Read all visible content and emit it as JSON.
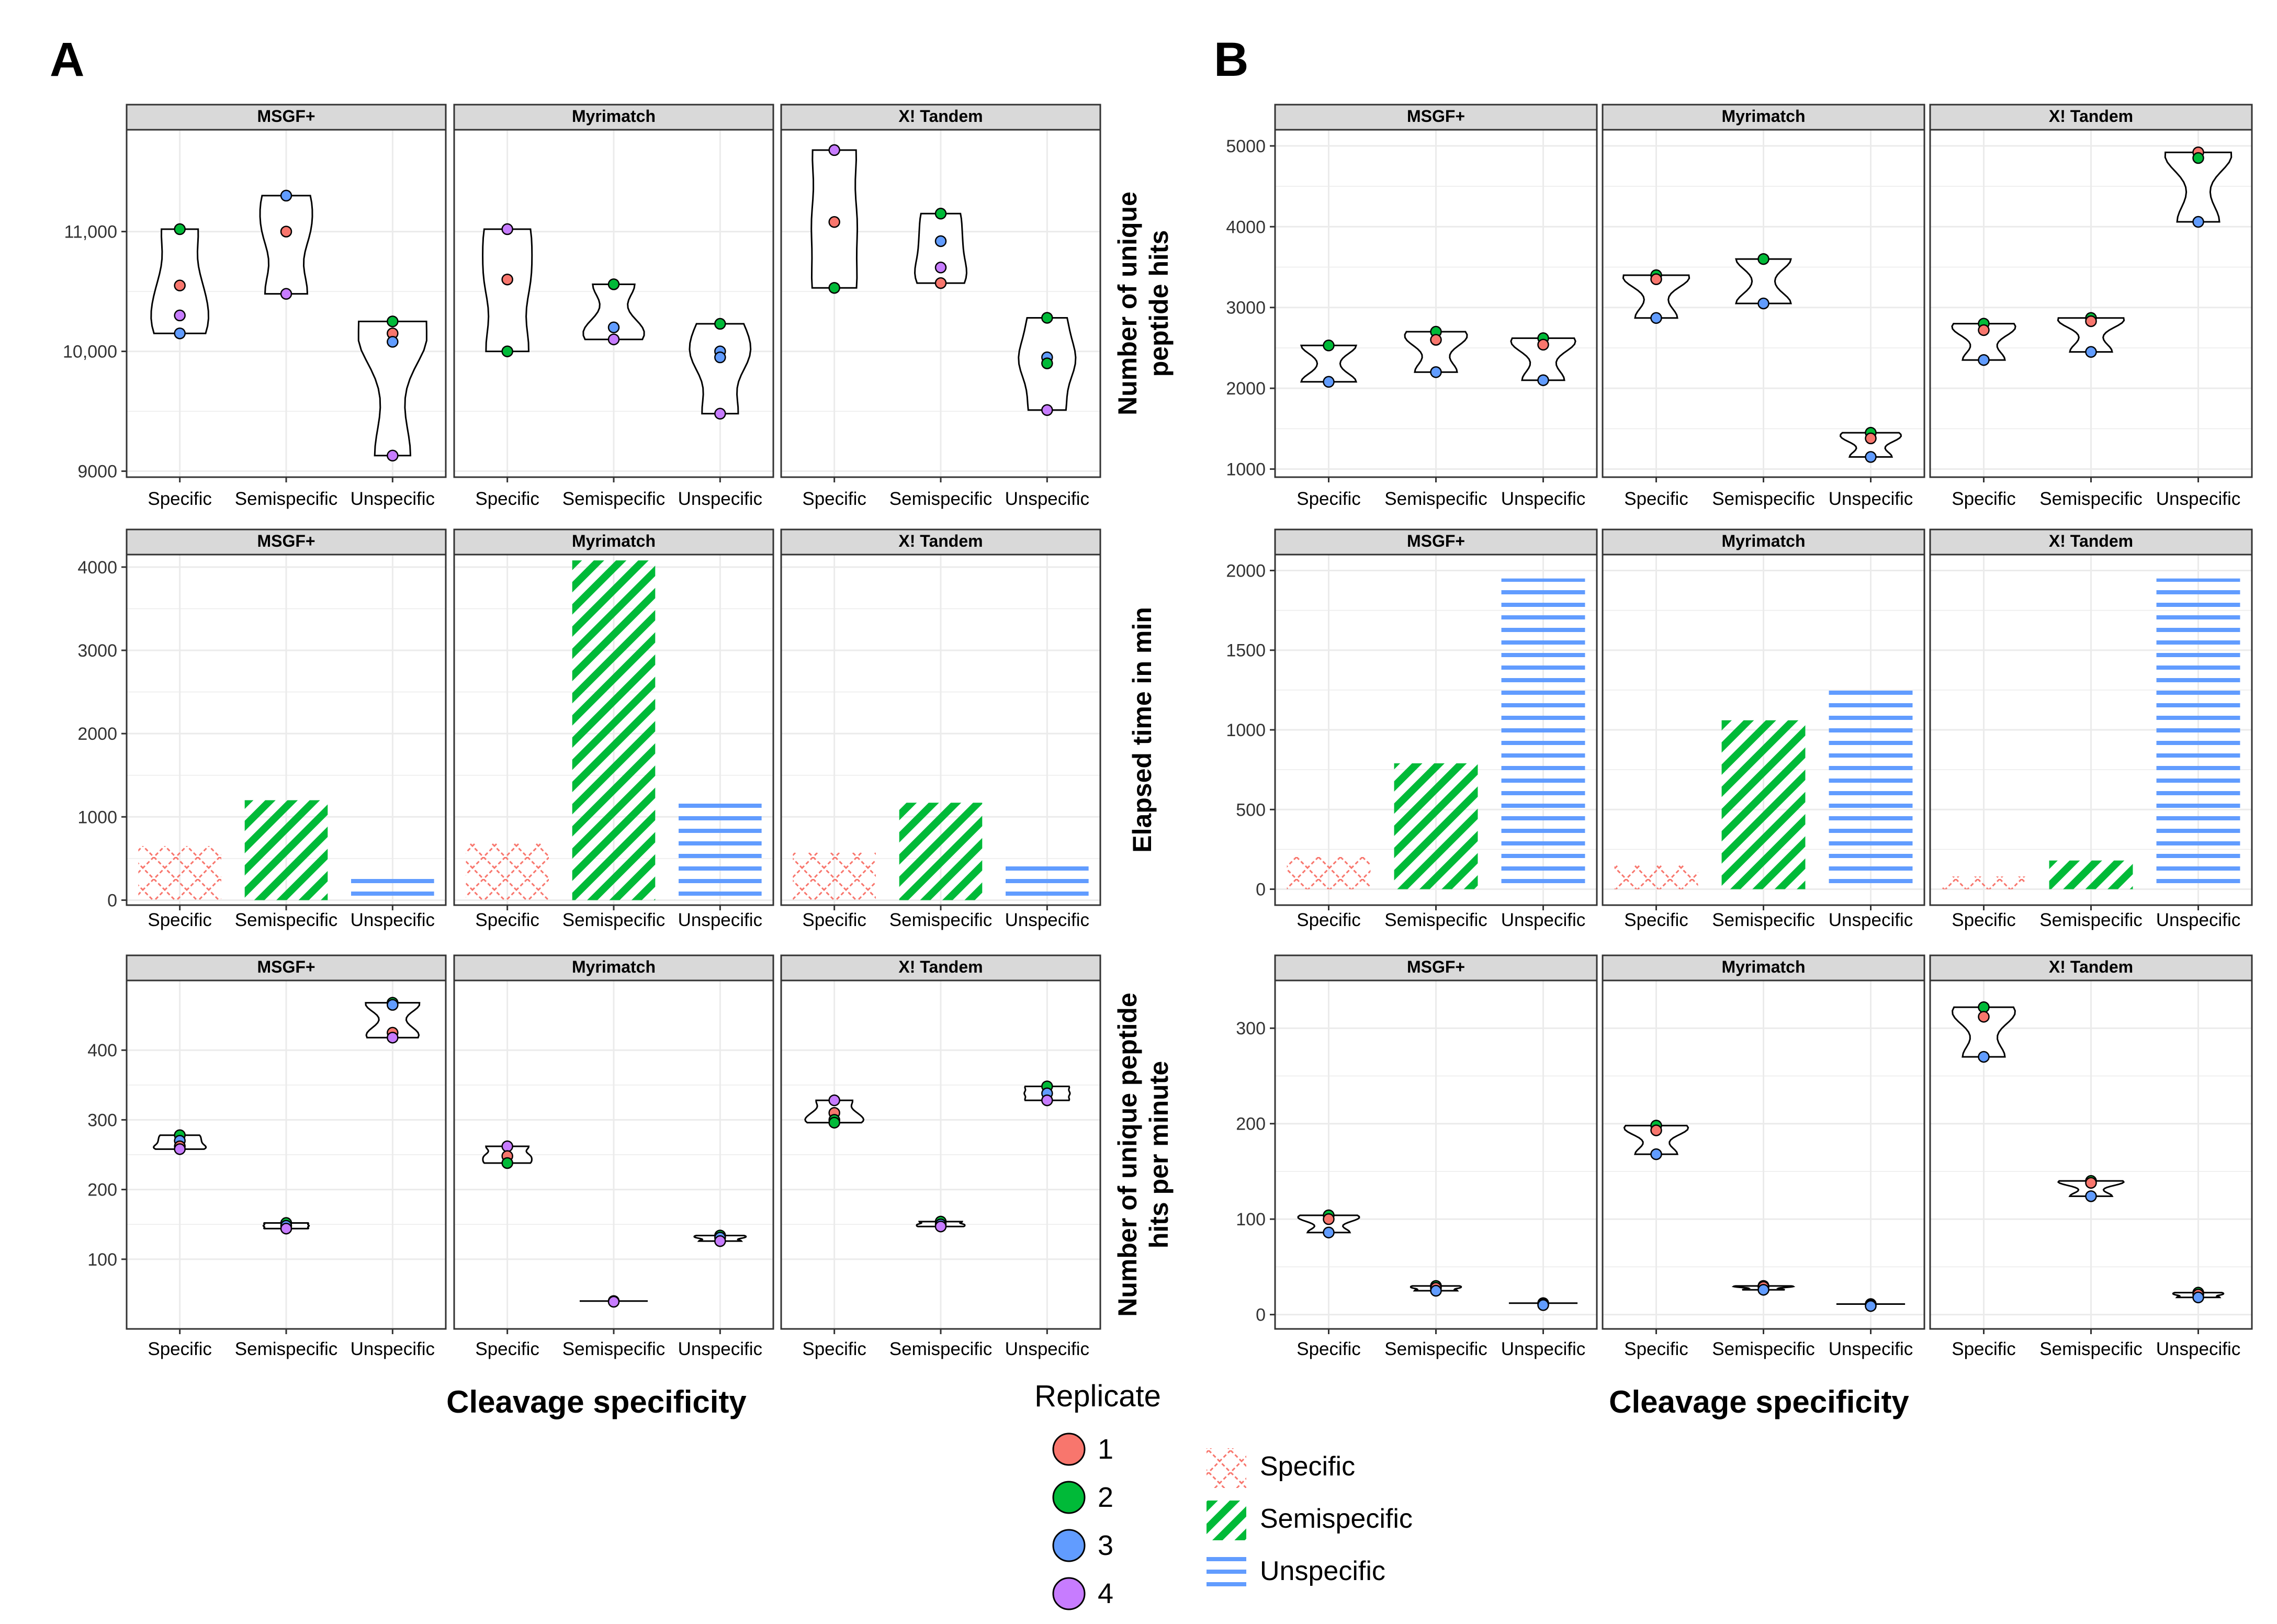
{
  "figure": {
    "x_axis_title": "Cleavage specificity",
    "replicate_legend": {
      "title": "Replicate",
      "items": [
        {
          "label": "1",
          "color": "#f8766d"
        },
        {
          "label": "2",
          "color": "#00ba38"
        },
        {
          "label": "3",
          "color": "#619cff"
        },
        {
          "label": "4",
          "color": "#c77cff"
        }
      ]
    },
    "pattern_legend": {
      "items": [
        {
          "label": "Specific",
          "pattern": "crosshatch",
          "color": "#f8766d"
        },
        {
          "label": "Semispecific",
          "pattern": "diagonal",
          "color": "#00ba38"
        },
        {
          "label": "Unspecific",
          "pattern": "horizontal",
          "color": "#619cff"
        }
      ]
    },
    "colors": {
      "strip_bg": "#d9d9d9",
      "grid": "#ebebeb",
      "axis": "#333333",
      "text": "#000000"
    }
  },
  "chart_data": [
    {
      "panel": "A",
      "row": 1,
      "type": "violin",
      "ylabel": "",
      "ylim": [
        8950,
        11850
      ],
      "yticks": [
        9000,
        10000,
        11000
      ],
      "ytick_labels": [
        "9000",
        "10,000",
        "11,000"
      ],
      "facets": [
        "MSGF+",
        "Myrimatch",
        "X! Tandem"
      ],
      "categories": [
        "Specific",
        "Semispecific",
        "Unspecific"
      ],
      "points": [
        [
          [
            [
              11020,
              2
            ],
            [
              10550,
              1
            ],
            [
              10300,
              4
            ],
            [
              10150,
              3
            ]
          ],
          [
            [
              11300,
              3
            ],
            [
              11000,
              1
            ],
            [
              10480,
              4
            ]
          ],
          [
            [
              10250,
              2
            ],
            [
              10150,
              1
            ],
            [
              10080,
              3
            ],
            [
              9130,
              4
            ]
          ]
        ],
        [
          [
            [
              11020,
              4
            ],
            [
              10600,
              1
            ],
            [
              10000,
              2
            ]
          ],
          [
            [
              10560,
              2
            ],
            [
              10200,
              3
            ],
            [
              10100,
              4
            ]
          ],
          [
            [
              10230,
              2
            ],
            [
              10000,
              3
            ],
            [
              9950,
              3
            ],
            [
              9480,
              4
            ]
          ]
        ],
        [
          [
            [
              11680,
              4
            ],
            [
              11080,
              1
            ],
            [
              10530,
              2
            ]
          ],
          [
            [
              11150,
              2
            ],
            [
              10920,
              3
            ],
            [
              10700,
              4
            ],
            [
              10570,
              1
            ]
          ],
          [
            [
              10280,
              2
            ],
            [
              9950,
              3
            ],
            [
              9900,
              2
            ],
            [
              9510,
              4
            ]
          ]
        ]
      ]
    },
    {
      "panel": "A",
      "row": 2,
      "type": "bar",
      "ylabel": "",
      "ylim": [
        -60,
        4150
      ],
      "yticks": [
        0,
        1000,
        2000,
        3000,
        4000
      ],
      "ytick_labels": [
        "0",
        "1000",
        "2000",
        "3000",
        "4000"
      ],
      "facets": [
        "MSGF+",
        "Myrimatch",
        "X! Tandem"
      ],
      "categories": [
        "Specific",
        "Semispecific",
        "Unspecific"
      ],
      "values": [
        [
          650,
          1200,
          260
        ],
        [
          680,
          4080,
          1200
        ],
        [
          570,
          1170,
          420
        ]
      ]
    },
    {
      "panel": "A",
      "row": 3,
      "type": "violin",
      "ylabel": "",
      "ylim": [
        0,
        500
      ],
      "yticks": [
        100,
        200,
        300,
        400
      ],
      "ytick_labels": [
        "100",
        "200",
        "300",
        "400"
      ],
      "facets": [
        "MSGF+",
        "Myrimatch",
        "X! Tandem"
      ],
      "categories": [
        "Specific",
        "Semispecific",
        "Unspecific"
      ],
      "points": [
        [
          [
            [
              278,
              2
            ],
            [
              270,
              3
            ],
            [
              262,
              1
            ],
            [
              258,
              4
            ]
          ],
          [
            [
              152,
              2
            ],
            [
              148,
              3
            ],
            [
              144,
              4
            ]
          ],
          [
            [
              468,
              2
            ],
            [
              465,
              3
            ],
            [
              425,
              1
            ],
            [
              418,
              4
            ]
          ]
        ],
        [
          [
            [
              262,
              4
            ],
            [
              248,
              1
            ],
            [
              238,
              2
            ]
          ],
          [
            [
              40,
              1
            ],
            [
              39,
              4
            ]
          ],
          [
            [
              134,
              2
            ],
            [
              131,
              3
            ],
            [
              126,
              4
            ]
          ]
        ],
        [
          [
            [
              328,
              4
            ],
            [
              310,
              1
            ],
            [
              300,
              2
            ],
            [
              296,
              2
            ]
          ],
          [
            [
              154,
              2
            ],
            [
              150,
              3
            ],
            [
              147,
              4
            ]
          ],
          [
            [
              348,
              2
            ],
            [
              338,
              3
            ],
            [
              328,
              4
            ]
          ]
        ]
      ]
    },
    {
      "panel": "B",
      "row": 1,
      "type": "violin",
      "ylabel": "Number of unique peptide hits",
      "ylim": [
        900,
        5200
      ],
      "yticks": [
        1000,
        2000,
        3000,
        4000,
        5000
      ],
      "ytick_labels": [
        "1000",
        "2000",
        "3000",
        "4000",
        "5000"
      ],
      "facets": [
        "MSGF+",
        "Myrimatch",
        "X! Tandem"
      ],
      "categories": [
        "Specific",
        "Semispecific",
        "Unspecific"
      ],
      "points": [
        [
          [
            [
              2530,
              2
            ],
            [
              2080,
              3
            ]
          ],
          [
            [
              2700,
              2
            ],
            [
              2600,
              1
            ],
            [
              2200,
              3
            ]
          ],
          [
            [
              2620,
              2
            ],
            [
              2540,
              1
            ],
            [
              2100,
              3
            ]
          ]
        ],
        [
          [
            [
              3400,
              2
            ],
            [
              3350,
              1
            ],
            [
              2870,
              3
            ]
          ],
          [
            [
              3600,
              2
            ],
            [
              3050,
              3
            ]
          ],
          [
            [
              1450,
              2
            ],
            [
              1380,
              1
            ],
            [
              1150,
              3
            ]
          ]
        ],
        [
          [
            [
              2800,
              2
            ],
            [
              2720,
              1
            ],
            [
              2350,
              3
            ]
          ],
          [
            [
              2870,
              2
            ],
            [
              2830,
              1
            ],
            [
              2450,
              3
            ]
          ],
          [
            [
              4920,
              1
            ],
            [
              4850,
              2
            ],
            [
              4060,
              3
            ]
          ]
        ]
      ]
    },
    {
      "panel": "B",
      "row": 2,
      "type": "bar",
      "ylabel": "Elapsed time in min",
      "ylim": [
        -100,
        2100
      ],
      "yticks": [
        0,
        500,
        1000,
        1500,
        2000
      ],
      "ytick_labels": [
        "0",
        "500",
        "1000",
        "1500",
        "2000"
      ],
      "facets": [
        "MSGF+",
        "Myrimatch",
        "X! Tandem"
      ],
      "categories": [
        "Specific",
        "Semispecific",
        "Unspecific"
      ],
      "values": [
        [
          210,
          790,
          1950
        ],
        [
          150,
          1060,
          1260
        ],
        [
          80,
          180,
          1950
        ]
      ]
    },
    {
      "panel": "B",
      "row": 3,
      "type": "violin",
      "ylabel": "Number of unique peptide hits per minute",
      "ylim": [
        -15,
        350
      ],
      "yticks": [
        0,
        100,
        200,
        300
      ],
      "ytick_labels": [
        "0",
        "100",
        "200",
        "300"
      ],
      "facets": [
        "MSGF+",
        "Myrimatch",
        "X! Tandem"
      ],
      "categories": [
        "Specific",
        "Semispecific",
        "Unspecific"
      ],
      "points": [
        [
          [
            [
              104,
              2
            ],
            [
              100,
              1
            ],
            [
              86,
              3
            ]
          ],
          [
            [
              30,
              2
            ],
            [
              28,
              1
            ],
            [
              25,
              3
            ]
          ],
          [
            [
              12,
              2
            ],
            [
              11,
              1
            ],
            [
              10,
              3
            ]
          ]
        ],
        [
          [
            [
              198,
              2
            ],
            [
              193,
              1
            ],
            [
              168,
              3
            ]
          ],
          [
            [
              30,
              2
            ],
            [
              29,
              1
            ],
            [
              26,
              3
            ]
          ],
          [
            [
              11,
              2
            ],
            [
              10,
              1
            ],
            [
              9,
              3
            ]
          ]
        ],
        [
          [
            [
              322,
              2
            ],
            [
              312,
              1
            ],
            [
              270,
              3
            ]
          ],
          [
            [
              140,
              2
            ],
            [
              138,
              1
            ],
            [
              124,
              3
            ]
          ],
          [
            [
              23,
              2
            ],
            [
              21,
              1
            ],
            [
              18,
              3
            ]
          ]
        ]
      ]
    }
  ],
  "panels": [
    {
      "letter": "A"
    },
    {
      "letter": "B"
    }
  ]
}
